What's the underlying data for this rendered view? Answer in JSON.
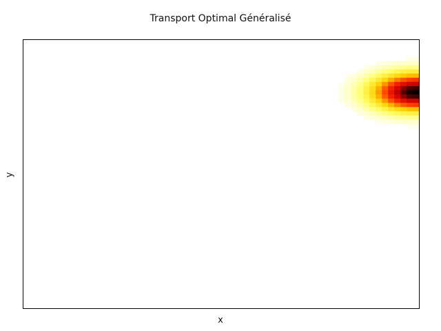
{
  "chart_data": {
    "type": "heatmap",
    "title": "Transport Optimal Généralisé",
    "xlabel": "x",
    "ylabel": "y",
    "colormap": "hot_r",
    "colors": [
      "#ffffff",
      "#ffff66",
      "#ffd000",
      "#ff2a00",
      "#cc0000",
      "#000000"
    ],
    "grid": false,
    "xticks": [],
    "yticks": [],
    "xlim": [
      0,
      1
    ],
    "ylim": [
      0,
      1
    ],
    "blob": {
      "center_x": 0.99,
      "center_y": 0.805,
      "sigma_x": 0.07,
      "sigma_y": 0.045,
      "peak_value": 1.0
    }
  }
}
